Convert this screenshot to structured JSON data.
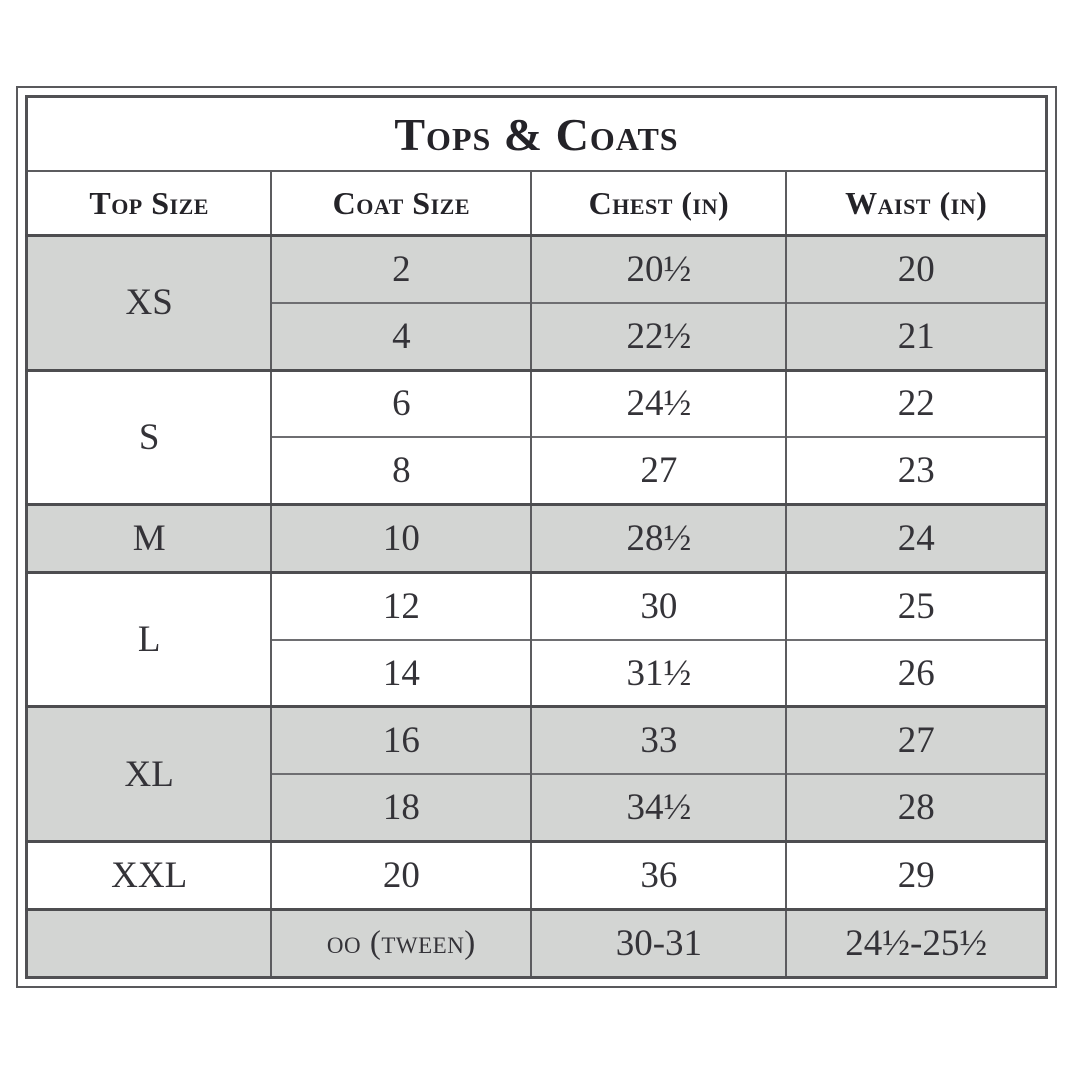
{
  "title": "Tops & Coats",
  "columns": [
    "Top Size",
    "Coat Size",
    "Chest (in)",
    "Waist (in)"
  ],
  "groups": [
    {
      "top_size": "XS",
      "shade": "gray",
      "rows": [
        [
          "2",
          "20½",
          "20"
        ],
        [
          "4",
          "22½",
          "21"
        ]
      ]
    },
    {
      "top_size": "S",
      "shade": "white",
      "rows": [
        [
          "6",
          "24½",
          "22"
        ],
        [
          "8",
          "27",
          "23"
        ]
      ]
    },
    {
      "top_size": "M",
      "shade": "gray",
      "rows": [
        [
          "10",
          "28½",
          "24"
        ]
      ]
    },
    {
      "top_size": "L",
      "shade": "white",
      "rows": [
        [
          "12",
          "30",
          "25"
        ],
        [
          "14",
          "31½",
          "26"
        ]
      ]
    },
    {
      "top_size": "XL",
      "shade": "gray",
      "rows": [
        [
          "16",
          "33",
          "27"
        ],
        [
          "18",
          "34½",
          "28"
        ]
      ]
    },
    {
      "top_size": "XXL",
      "shade": "white",
      "rows": [
        [
          "20",
          "36",
          "29"
        ]
      ]
    },
    {
      "top_size": "",
      "shade": "gray",
      "rows": [
        [
          "oo (tween)",
          "30-31",
          "24½-25½"
        ]
      ]
    }
  ],
  "colors": {
    "shaded_row": "#d3d5d3",
    "border_dark": "#4d4d50",
    "border_light": "#6e6e71",
    "text": "#2e2d32"
  }
}
